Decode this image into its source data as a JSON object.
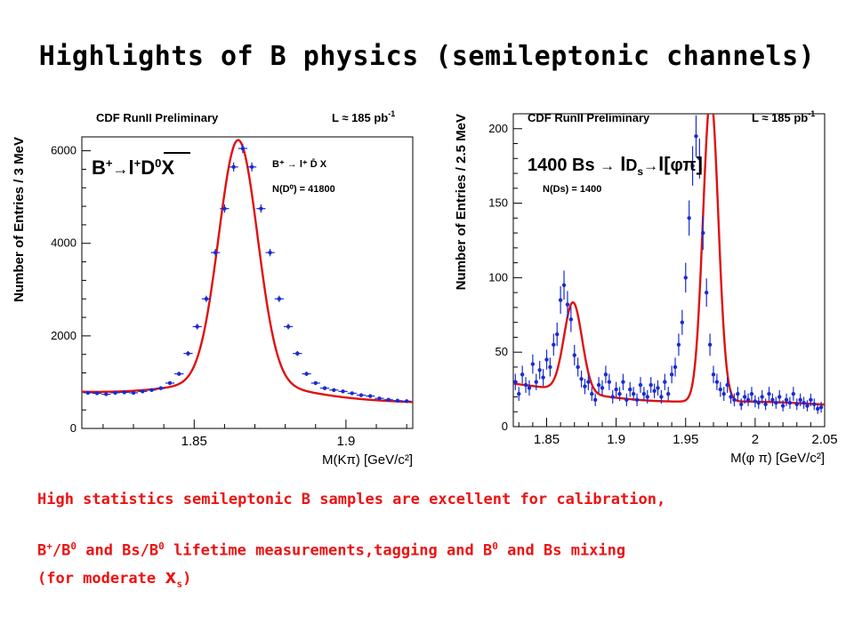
{
  "title": "Highlights of B physics (semileptonic channels)",
  "caption": {
    "line1": "High statistics semileptonic B samples are excellent for calibration,",
    "line2_a": "B",
    "line2_a_sup": "+",
    "line2_b": "/B",
    "line2_b_sup": "0",
    "line2_c": " and Bs/B",
    "line2_c_sup": "0",
    "line2_d": " lifetime measurements,tagging and B",
    "line2_d_sup": "0",
    "line2_e": " and Bs mixing",
    "line3_a": "(for moderate ",
    "line3_x": "x",
    "line3_sub": "s",
    "line3_b": ")"
  },
  "chart_data": [
    {
      "type": "scatter",
      "header_left": "CDF RunII Preliminary",
      "header_lum": "L ≈ 185 pb",
      "header_lum_sup": "-1",
      "overlay": {
        "b": "B",
        "b_sup": "+",
        "arrow": "→",
        "l": "l",
        "l_sup": "+",
        "d": "D",
        "d_sup": "0",
        "x": "X"
      },
      "legend_decay": "B⁺ → l⁺ D̄ X",
      "legend_count": "N(D⁰) = 41800",
      "xlabel": "M(Kπ) [GeV/c²]",
      "ylabel": "Number of Entries /  3 MeV",
      "xlim": [
        1.813,
        1.922
      ],
      "ylim": [
        0,
        6300
      ],
      "xticks": [
        {
          "v": 1.85,
          "label": "1.85"
        },
        {
          "v": 1.9,
          "label": "1.9"
        }
      ],
      "yticks": [
        {
          "v": 0,
          "label": "0"
        },
        {
          "v": 2000,
          "label": "2000"
        },
        {
          "v": 4000,
          "label": "4000"
        },
        {
          "v": 6000,
          "label": "6000"
        }
      ],
      "points": {
        "x": [
          1.815,
          1.818,
          1.821,
          1.824,
          1.827,
          1.83,
          1.833,
          1.836,
          1.839,
          1.842,
          1.845,
          1.848,
          1.851,
          1.854,
          1.857,
          1.86,
          1.863,
          1.866,
          1.869,
          1.872,
          1.875,
          1.878,
          1.881,
          1.884,
          1.887,
          1.89,
          1.893,
          1.896,
          1.899,
          1.902,
          1.905,
          1.908,
          1.911,
          1.914,
          1.917,
          1.92
        ],
        "y": [
          770,
          760,
          740,
          770,
          780,
          770,
          800,
          830,
          870,
          980,
          1180,
          1620,
          2200,
          2800,
          3800,
          4750,
          5650,
          6050,
          5650,
          4750,
          3800,
          2800,
          2200,
          1620,
          1180,
          980,
          870,
          830,
          800,
          760,
          720,
          700,
          650,
          620,
          600,
          590
        ]
      },
      "fit": {
        "mean": 1.8645,
        "sigma": 0.0064,
        "peak": 5230,
        "baseline": [
          1.815,
          780,
          1.92,
          570
        ],
        "baseline_bump": 320
      }
    },
    {
      "type": "scatter",
      "header_left": "CDF RunII Preliminary",
      "header_lum": "L ≈ 185 pb",
      "header_lum_sup": "-1",
      "overlay": {
        "count": "1400 Bs",
        "arrow": "→",
        "l": "l",
        "d": "D",
        "d_sub": "s",
        "arrow2": "→",
        "l2": "l[",
        "phi": "φ",
        "pi": "π",
        "close": "]"
      },
      "legend_count": "N(Ds) = 1400",
      "xlabel": "M(φ π) [GeV/c²]",
      "ylabel": "Number of Entries / 2.5 MeV",
      "xlim": [
        1.826,
        2.05
      ],
      "ylim": [
        0,
        210
      ],
      "xticks": [
        {
          "v": 1.85,
          "label": "1.85"
        },
        {
          "v": 1.9,
          "label": "1.9"
        },
        {
          "v": 1.95,
          "label": "1.95"
        },
        {
          "v": 2.0,
          "label": "2"
        },
        {
          "v": 2.05,
          "label": "2.05"
        }
      ],
      "yticks": [
        {
          "v": 0,
          "label": "0"
        },
        {
          "v": 50,
          "label": "50"
        },
        {
          "v": 100,
          "label": "100"
        },
        {
          "v": 150,
          "label": "150"
        },
        {
          "v": 200,
          "label": "200"
        }
      ],
      "points": {
        "x": [
          1.8275,
          1.83,
          1.8325,
          1.835,
          1.8375,
          1.84,
          1.8425,
          1.845,
          1.8475,
          1.85,
          1.8525,
          1.855,
          1.8575,
          1.86,
          1.8625,
          1.865,
          1.8675,
          1.87,
          1.8725,
          1.875,
          1.8775,
          1.88,
          1.8825,
          1.885,
          1.8875,
          1.89,
          1.8925,
          1.895,
          1.8975,
          1.9,
          1.9025,
          1.905,
          1.9075,
          1.91,
          1.9125,
          1.915,
          1.9175,
          1.92,
          1.9225,
          1.925,
          1.9275,
          1.93,
          1.9325,
          1.935,
          1.9375,
          1.94,
          1.9425,
          1.945,
          1.9475,
          1.95,
          1.9525,
          1.955,
          1.9575,
          1.96,
          1.9625,
          1.965,
          1.9675,
          1.97,
          1.9725,
          1.975,
          1.9775,
          1.98,
          1.9825,
          1.985,
          1.9875,
          1.99,
          1.9925,
          1.995,
          1.9975,
          2.0,
          2.0025,
          2.005,
          2.0075,
          2.01,
          2.0125,
          2.015,
          2.0175,
          2.02,
          2.0225,
          2.025,
          2.0275,
          2.03,
          2.0325,
          2.035,
          2.0375,
          2.04,
          2.0425,
          2.045,
          2.0475
        ],
        "y": [
          30,
          22,
          35,
          28,
          26,
          42,
          30,
          38,
          33,
          45,
          40,
          55,
          62,
          85,
          95,
          82,
          72,
          48,
          40,
          32,
          27,
          30,
          22,
          18,
          28,
          26,
          35,
          30,
          20,
          25,
          22,
          30,
          18,
          25,
          22,
          18,
          28,
          22,
          20,
          28,
          24,
          26,
          20,
          30,
          22,
          35,
          40,
          55,
          70,
          100,
          140,
          175,
          195,
          180,
          130,
          90,
          55,
          35,
          30,
          25,
          22,
          28,
          20,
          18,
          22,
          15,
          20,
          18,
          22,
          17,
          16,
          20,
          15,
          22,
          18,
          16,
          20,
          14,
          18,
          16,
          22,
          15,
          18,
          16,
          14,
          18,
          15,
          12,
          13
        ]
      },
      "fit": {
        "peaks": [
          {
            "mean": 1.869,
            "sigma": 0.0065,
            "amp": 60
          },
          {
            "mean": 1.968,
            "sigma": 0.0055,
            "amp": 205
          }
        ],
        "baseline": [
          1.826,
          30,
          2.05,
          15
        ],
        "dip_center": 1.918,
        "dip_width": 0.05,
        "dip_depth": 6
      }
    }
  ]
}
